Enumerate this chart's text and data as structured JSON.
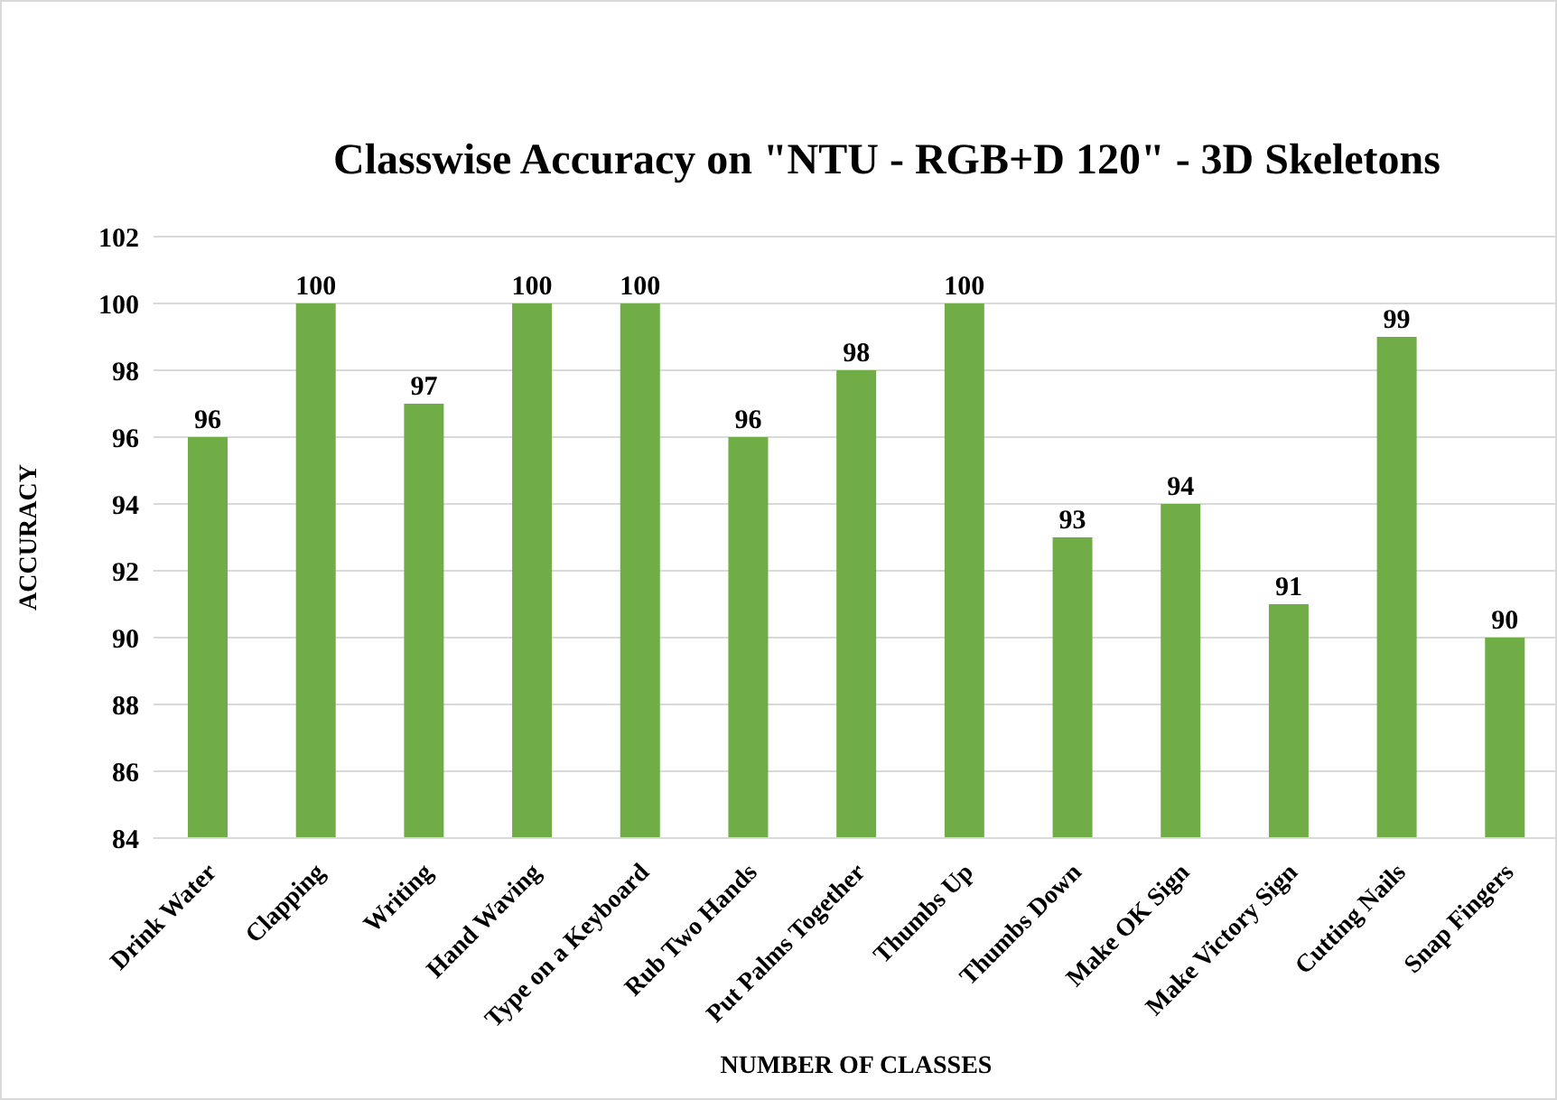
{
  "chart_data": {
    "type": "bar",
    "title": "Classwise Accuracy  on \"NTU - RGB+D 120\" - 3D Skeletons",
    "xlabel": "NUMBER OF CLASSES",
    "ylabel": "ACCURACY",
    "categories": [
      "Drink Water",
      "Clapping",
      "Writing",
      "Hand Waving",
      "Type on a Keyboard",
      "Rub Two Hands",
      "Put Palms Together",
      "Thumbs Up",
      "Thumbs Down",
      "Make OK Sign",
      "Make Victory Sign",
      "Cutting Nails",
      "Snap Fingers"
    ],
    "values": [
      96,
      100,
      97,
      100,
      100,
      96,
      98,
      100,
      93,
      94,
      91,
      99,
      90
    ],
    "color": "#70ad47",
    "ylim": [
      84,
      102
    ],
    "yticks": [
      84,
      86,
      88,
      90,
      92,
      94,
      96,
      98,
      100,
      102
    ],
    "grid": "y",
    "data_labels": true
  }
}
